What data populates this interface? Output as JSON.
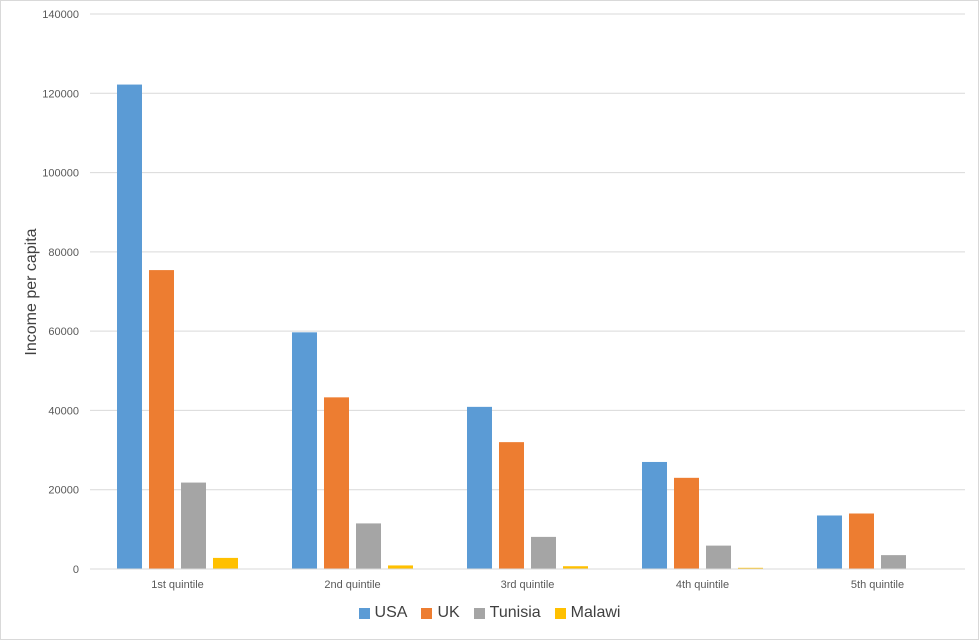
{
  "chart_data": {
    "type": "bar",
    "title": "",
    "xlabel": "",
    "ylabel": "Income per capita",
    "ylim": [
      0,
      140000
    ],
    "yticks": [
      0,
      20000,
      40000,
      60000,
      80000,
      100000,
      120000,
      140000
    ],
    "grid": true,
    "legend_position": "bottom",
    "categories": [
      "1st quintile",
      "2nd quintile",
      "3rd quintile",
      "4th quintile",
      "5th quintile"
    ],
    "series": [
      {
        "name": "USA",
        "color": "#5b9bd5",
        "values": [
          122200,
          59700,
          40900,
          27000,
          13500
        ]
      },
      {
        "name": "UK",
        "color": "#ed7d31",
        "values": [
          75400,
          43300,
          32000,
          23000,
          14000
        ]
      },
      {
        "name": "Tunisia",
        "color": "#a5a5a5",
        "values": [
          21800,
          11500,
          8100,
          5900,
          3500
        ]
      },
      {
        "name": "Malawi",
        "color": "#ffc000",
        "values": [
          2800,
          900,
          700,
          300,
          100
        ]
      }
    ]
  }
}
